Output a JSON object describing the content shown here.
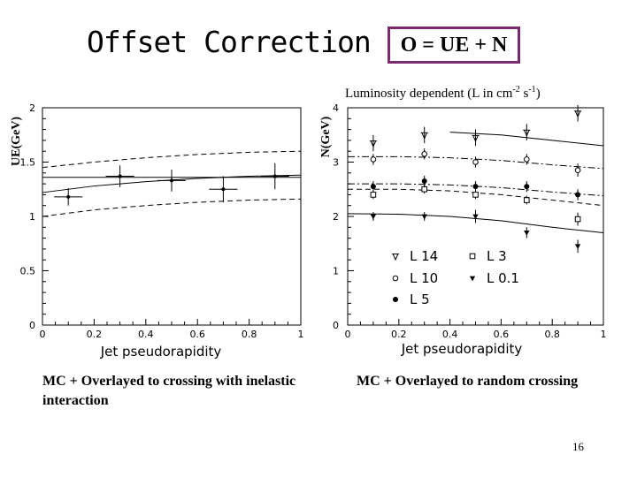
{
  "slide": {
    "title": "Offset Correction",
    "formula": "O = UE + N",
    "luminosity_note_pre": "Luminosity dependent (L in cm",
    "luminosity_note_exp1": "-2",
    "luminosity_note_mid": " s",
    "luminosity_note_exp2": "-1",
    "luminosity_note_post": ")",
    "caption_left": "MC + Overlayed to crossing with inelastic interaction",
    "caption_right": "MC +  Overlayed to random crossing",
    "page_number": "16",
    "frame_color": "#7a2a6e"
  },
  "chart_data": [
    {
      "type": "scatter",
      "title": "",
      "xlabel": "Jet pseudorapidity",
      "ylabel": "UE(GeV)",
      "xlim": [
        0,
        1
      ],
      "ylim": [
        0,
        2
      ],
      "xticks": [
        "0",
        "0.2",
        "0.4",
        "0.6",
        "0.8",
        "1"
      ],
      "yticks": [
        "0",
        "0.5",
        "1",
        "1.5",
        "2"
      ],
      "series": [
        {
          "marker": "plus",
          "x": [
            0.1,
            0.3,
            0.5,
            0.7,
            0.9
          ],
          "y": [
            1.18,
            1.37,
            1.33,
            1.25,
            1.37
          ],
          "err": [
            0.08,
            0.1,
            0.1,
            0.12,
            0.12
          ]
        }
      ],
      "curves": [
        {
          "style": "dashed",
          "x": [
            0,
            0.2,
            0.4,
            0.6,
            0.8,
            1
          ],
          "y": [
            1.45,
            1.5,
            1.54,
            1.57,
            1.59,
            1.6
          ]
        },
        {
          "style": "solid",
          "x": [
            0,
            0.2,
            0.4,
            0.6,
            0.8,
            1
          ],
          "y": [
            1.22,
            1.28,
            1.32,
            1.35,
            1.37,
            1.38
          ]
        },
        {
          "style": "solid",
          "x": [
            0,
            1
          ],
          "y": [
            1.36,
            1.36
          ]
        },
        {
          "style": "dashed",
          "x": [
            0,
            0.2,
            0.4,
            0.6,
            0.8,
            1
          ],
          "y": [
            1.0,
            1.06,
            1.1,
            1.13,
            1.15,
            1.16
          ]
        }
      ]
    },
    {
      "type": "scatter",
      "title": "",
      "xlabel": "Jet pseudorapidity",
      "ylabel": "N(GeV)",
      "xlim": [
        0,
        1
      ],
      "ylim": [
        0,
        4
      ],
      "xticks": [
        "0",
        "0.2",
        "0.4",
        "0.6",
        "0.8",
        "1"
      ],
      "yticks": [
        "0",
        "1",
        "2",
        "3",
        "4"
      ],
      "legend": [
        {
          "marker": "star",
          "label": "L 14"
        },
        {
          "marker": "square",
          "label": "L 3"
        },
        {
          "marker": "circle",
          "label": "L 10"
        },
        {
          "marker": "triangle",
          "label": "L 0.1"
        },
        {
          "marker": "dot",
          "label": "L 5"
        }
      ],
      "series": [
        {
          "name": "L 14",
          "marker": "star",
          "x": [
            0.1,
            0.3,
            0.5,
            0.7,
            0.9
          ],
          "y": [
            3.35,
            3.5,
            3.45,
            3.55,
            3.9
          ],
          "err": [
            0.15,
            0.15,
            0.15,
            0.15,
            0.15
          ]
        },
        {
          "name": "L 10",
          "marker": "circle",
          "x": [
            0.1,
            0.3,
            0.5,
            0.7,
            0.9
          ],
          "y": [
            3.05,
            3.15,
            3.0,
            3.05,
            2.85
          ],
          "err": [
            0.1,
            0.1,
            0.1,
            0.1,
            0.12
          ]
        },
        {
          "name": "L 5",
          "marker": "dot",
          "x": [
            0.1,
            0.3,
            0.5,
            0.7,
            0.9
          ],
          "y": [
            2.55,
            2.65,
            2.55,
            2.55,
            2.4
          ],
          "err": [
            0.1,
            0.1,
            0.1,
            0.1,
            0.1
          ]
        },
        {
          "name": "L 3",
          "marker": "square",
          "x": [
            0.1,
            0.3,
            0.5,
            0.7,
            0.9
          ],
          "y": [
            2.4,
            2.5,
            2.4,
            2.3,
            1.95
          ],
          "err": [
            0.08,
            0.08,
            0.08,
            0.08,
            0.12
          ]
        },
        {
          "name": "L 0.1",
          "marker": "triangle",
          "x": [
            0.1,
            0.3,
            0.5,
            0.7,
            0.9
          ],
          "y": [
            2.0,
            2.0,
            2.0,
            1.7,
            1.45
          ],
          "err": [
            0.08,
            0.08,
            0.12,
            0.1,
            0.12
          ]
        }
      ],
      "curves": [
        {
          "style": "solid",
          "x": [
            0.4,
            0.6,
            0.8,
            1
          ],
          "y": [
            3.55,
            3.5,
            3.4,
            3.3
          ]
        },
        {
          "style": "dashdot",
          "x": [
            0,
            0.2,
            0.4,
            0.6,
            0.8,
            1
          ],
          "y": [
            3.1,
            3.1,
            3.08,
            3.03,
            2.95,
            2.88
          ]
        },
        {
          "style": "dashdot",
          "x": [
            0,
            0.2,
            0.4,
            0.6,
            0.8,
            1
          ],
          "y": [
            2.6,
            2.6,
            2.58,
            2.53,
            2.45,
            2.38
          ]
        },
        {
          "style": "dashed",
          "x": [
            0,
            0.2,
            0.4,
            0.6,
            0.8,
            1
          ],
          "y": [
            2.5,
            2.5,
            2.47,
            2.4,
            2.3,
            2.2
          ]
        },
        {
          "style": "solid",
          "x": [
            0,
            0.2,
            0.4,
            0.6,
            0.8,
            1
          ],
          "y": [
            2.05,
            2.04,
            2.0,
            1.92,
            1.8,
            1.7
          ]
        }
      ]
    }
  ]
}
